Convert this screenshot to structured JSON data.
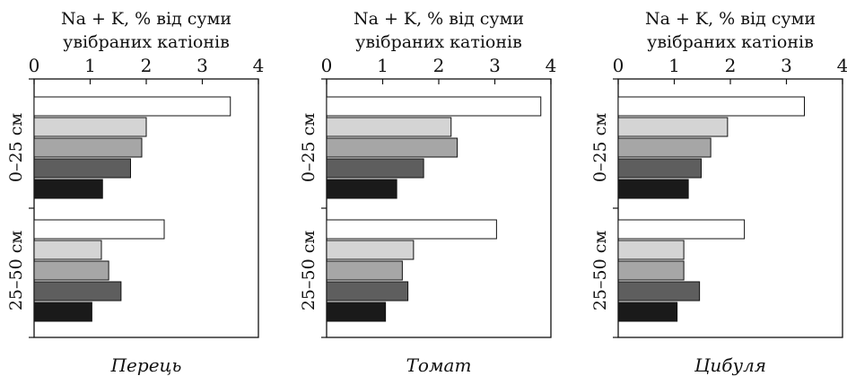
{
  "chart_data": [
    {
      "type": "bar",
      "orientation": "horizontal",
      "title": [
        "Na + K, % від суми",
        "увібраних катіонів"
      ],
      "xlim": [
        0,
        4
      ],
      "xticks": [
        "0",
        "1",
        "2",
        "3",
        "4"
      ],
      "categories": [
        "0–25 см",
        "25–50 см"
      ],
      "crop": "Перець",
      "bar_colors": [
        "#ffffff",
        "#d4d4d4",
        "#a6a6a6",
        "#5e5e5e",
        "#1a1a1a"
      ],
      "groups": [
        {
          "category": "0–25 см",
          "values": [
            3.5,
            2.0,
            1.92,
            1.72,
            1.22
          ]
        },
        {
          "category": "25–50 см",
          "values": [
            2.32,
            1.2,
            1.33,
            1.55,
            1.03
          ]
        }
      ]
    },
    {
      "type": "bar",
      "orientation": "horizontal",
      "title": [
        "Na + K, % від суми",
        "увібраних катіонів"
      ],
      "xlim": [
        0,
        4
      ],
      "xticks": [
        "0",
        "1",
        "2",
        "3",
        "4"
      ],
      "categories": [
        "0–25 см",
        "25–50 см"
      ],
      "crop": "Томат",
      "bar_colors": [
        "#ffffff",
        "#d4d4d4",
        "#a6a6a6",
        "#5e5e5e",
        "#1a1a1a"
      ],
      "groups": [
        {
          "category": "0–25 см",
          "values": [
            3.82,
            2.22,
            2.33,
            1.73,
            1.25
          ]
        },
        {
          "category": "25–50 см",
          "values": [
            3.03,
            1.55,
            1.35,
            1.45,
            1.05
          ]
        }
      ]
    },
    {
      "type": "bar",
      "orientation": "horizontal",
      "title": [
        "Na + K, % від суми",
        "увібраних катіонів"
      ],
      "xlim": [
        0,
        4
      ],
      "xticks": [
        "0",
        "1",
        "2",
        "3",
        "4"
      ],
      "categories": [
        "0–25 см",
        "25–50 см"
      ],
      "crop": "Цибуля",
      "bar_colors": [
        "#ffffff",
        "#d4d4d4",
        "#a6a6a6",
        "#5e5e5e",
        "#1a1a1a"
      ],
      "groups": [
        {
          "category": "0–25 см",
          "values": [
            3.32,
            1.95,
            1.65,
            1.48,
            1.25
          ]
        },
        {
          "category": "25–50 см",
          "values": [
            2.25,
            1.17,
            1.17,
            1.45,
            1.05
          ]
        }
      ]
    }
  ]
}
